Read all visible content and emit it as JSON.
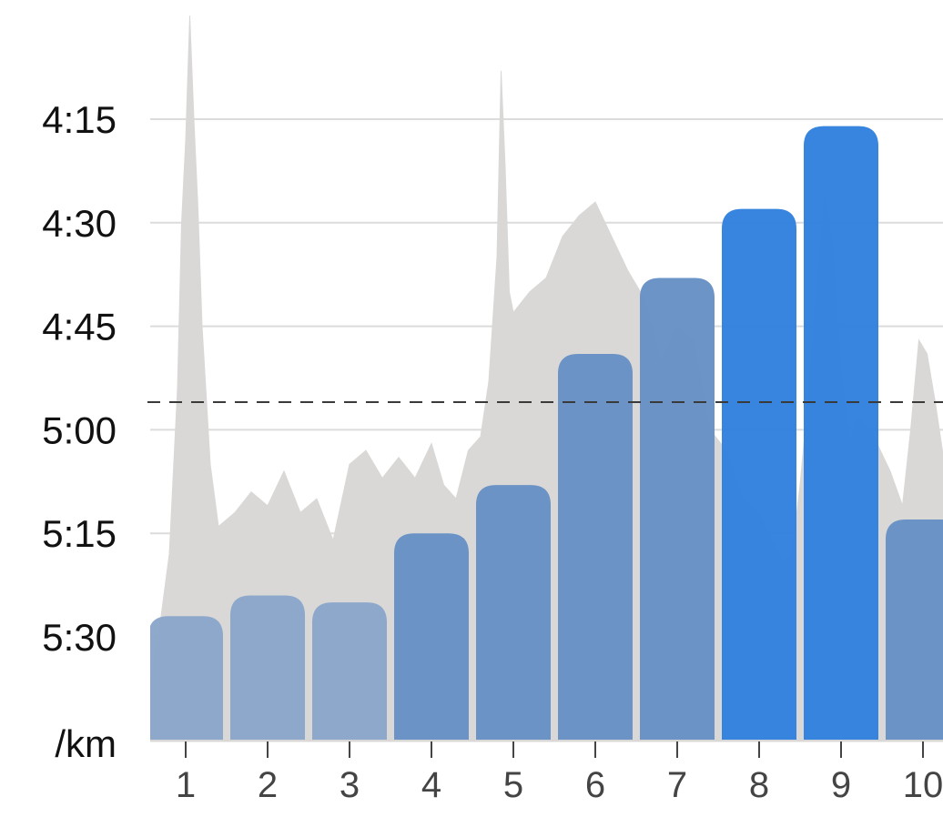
{
  "chart_data": {
    "type": "bar",
    "title": "",
    "xlabel": "",
    "ylabel": "",
    "y_unit_label": "/km",
    "y_axis_inverted": true,
    "y_tick_labels": [
      "4:15",
      "4:30",
      "4:45",
      "5:00",
      "5:15",
      "5:30"
    ],
    "y_tick_seconds": [
      255,
      270,
      285,
      300,
      315,
      330
    ],
    "ylim_seconds": [
      345,
      240
    ],
    "grid": true,
    "reference_line_seconds": 296,
    "categories": [
      "1",
      "2",
      "3",
      "4",
      "5",
      "6",
      "7",
      "8",
      "9",
      "10"
    ],
    "series": [
      {
        "values_seconds": [
          327,
          324,
          325,
          315,
          308,
          289,
          278,
          268,
          256,
          313
        ],
        "colors": [
          "#89a6c9",
          "#89a6c9",
          "#89a6c9",
          "#6690c4",
          "#6690c4",
          "#6690c4",
          "#6690c4",
          "#2f80dd",
          "#2f80dd",
          "#6690c4"
        ]
      }
    ],
    "background_pace_trace": {
      "color": "#d9d8d7",
      "points": [
        [
          0.5,
          341
        ],
        [
          0.6,
          335
        ],
        [
          0.7,
          327
        ],
        [
          0.8,
          318
        ],
        [
          0.9,
          294
        ],
        [
          0.95,
          270
        ],
        [
          1.0,
          258
        ],
        [
          1.05,
          240
        ],
        [
          1.1,
          255
        ],
        [
          1.15,
          268
        ],
        [
          1.2,
          285
        ],
        [
          1.3,
          305
        ],
        [
          1.4,
          314
        ],
        [
          1.6,
          312
        ],
        [
          1.8,
          309
        ],
        [
          2.0,
          311
        ],
        [
          2.2,
          306
        ],
        [
          2.4,
          312
        ],
        [
          2.6,
          310
        ],
        [
          2.8,
          316
        ],
        [
          3.0,
          305
        ],
        [
          3.2,
          303
        ],
        [
          3.4,
          307
        ],
        [
          3.6,
          304
        ],
        [
          3.8,
          307
        ],
        [
          4.0,
          302
        ],
        [
          4.15,
          308
        ],
        [
          4.3,
          310
        ],
        [
          4.45,
          303
        ],
        [
          4.6,
          301
        ],
        [
          4.7,
          293
        ],
        [
          4.8,
          275
        ],
        [
          4.85,
          248
        ],
        [
          4.9,
          262
        ],
        [
          4.95,
          280
        ],
        [
          5.0,
          283
        ],
        [
          5.2,
          280
        ],
        [
          5.4,
          278
        ],
        [
          5.6,
          272
        ],
        [
          5.8,
          269
        ],
        [
          6.0,
          267
        ],
        [
          6.2,
          272
        ],
        [
          6.4,
          277
        ],
        [
          6.6,
          281
        ],
        [
          6.8,
          290
        ],
        [
          7.0,
          285
        ],
        [
          7.2,
          287
        ],
        [
          7.4,
          300
        ],
        [
          7.6,
          303
        ],
        [
          7.8,
          310
        ],
        [
          8.0,
          312
        ],
        [
          8.15,
          316
        ],
        [
          8.3,
          319
        ],
        [
          8.4,
          318
        ],
        [
          8.5,
          308
        ],
        [
          8.6,
          295
        ],
        [
          8.7,
          281
        ],
        [
          8.8,
          266
        ],
        [
          8.9,
          274
        ],
        [
          9.0,
          292
        ],
        [
          9.1,
          302
        ],
        [
          9.2,
          298
        ],
        [
          9.4,
          301
        ],
        [
          9.6,
          306
        ],
        [
          9.75,
          311
        ],
        [
          9.85,
          300
        ],
        [
          9.95,
          287
        ],
        [
          10.05,
          289
        ],
        [
          10.15,
          296
        ],
        [
          10.25,
          304
        ]
      ]
    }
  }
}
